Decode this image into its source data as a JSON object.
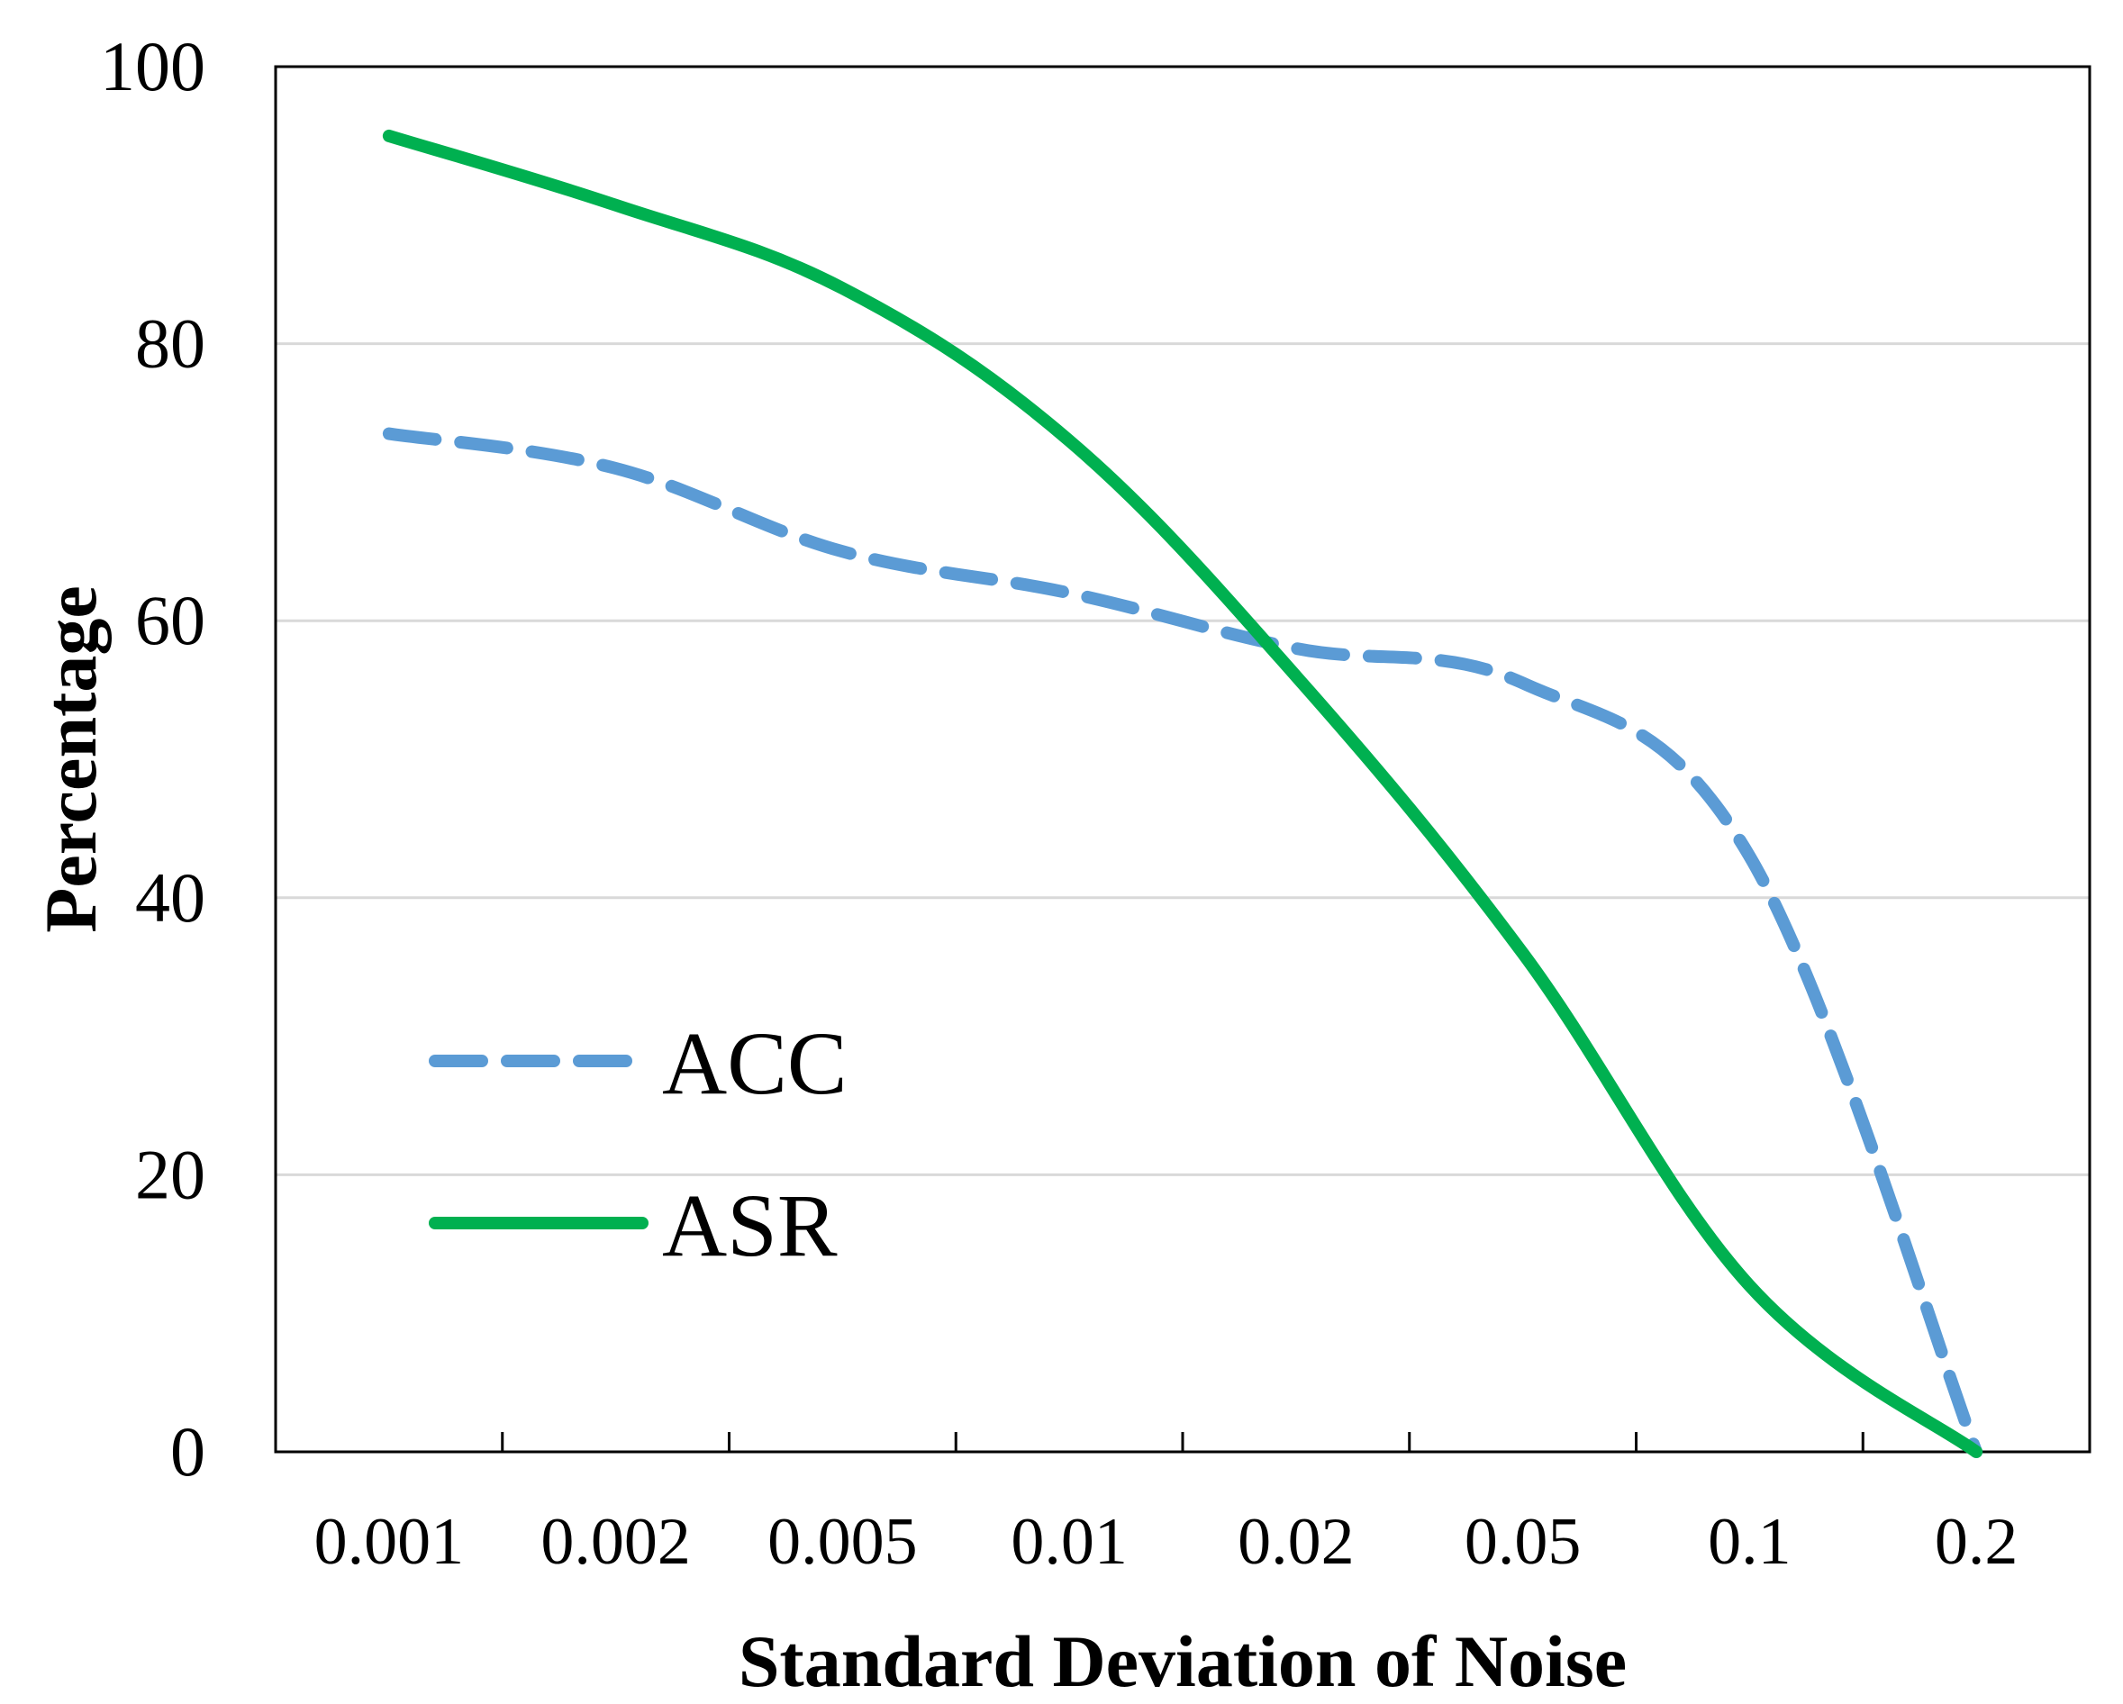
{
  "chart_data": {
    "type": "line",
    "title": "",
    "xlabel": "Standard Deviation of Noise",
    "ylabel": "Percentage",
    "categories": [
      "0.001",
      "0.002",
      "0.005",
      "0.01",
      "0.02",
      "0.05",
      "0.1",
      "0.2"
    ],
    "ylim": [
      0,
      100
    ],
    "yticks": [
      "0",
      "20",
      "40",
      "60",
      "80",
      "100"
    ],
    "grid": true,
    "legend_position": "lower-left",
    "series": [
      {
        "name": "ACC",
        "color": "#5B9BD5",
        "dash": true,
        "values": [
          73.5,
          71,
          65,
          62,
          58,
          55.5,
          43,
          0
        ]
      },
      {
        "name": "ASR",
        "color": "#00B050",
        "dash": false,
        "values": [
          95,
          90,
          84,
          73,
          56,
          36,
          12,
          0
        ]
      }
    ]
  }
}
